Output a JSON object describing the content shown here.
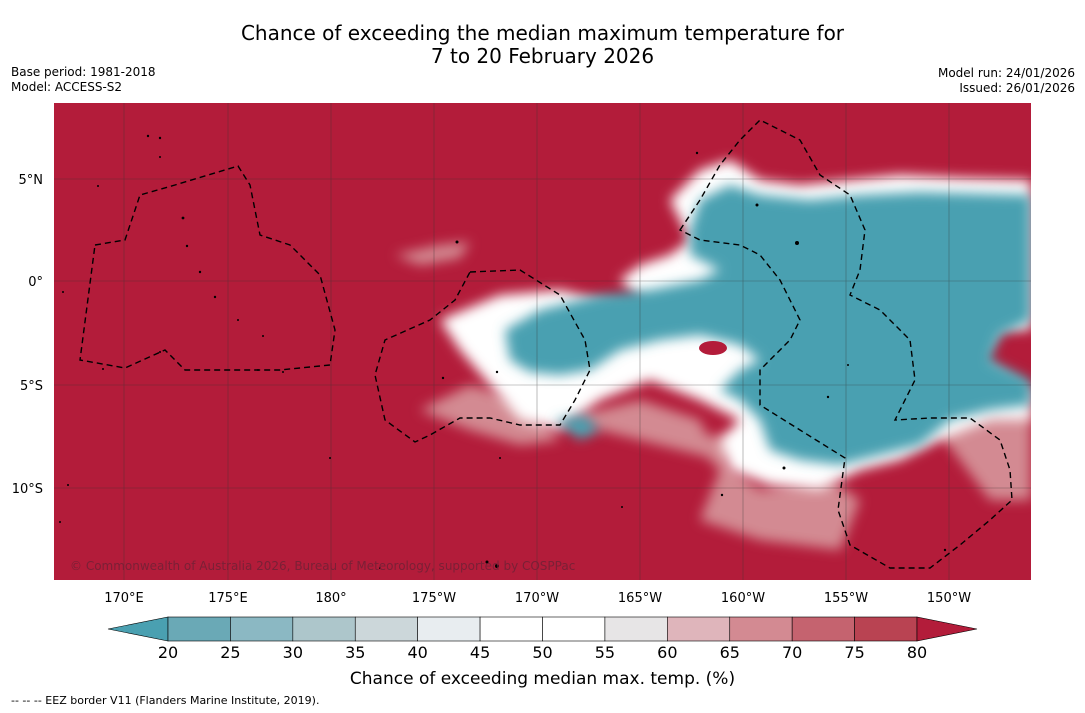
{
  "title": {
    "line1": "Chance of exceeding the median maximum temperature for",
    "line2": "7 to 20 February 2026"
  },
  "meta_left": {
    "base_period": "Base period: 1981-2018",
    "model": "Model: ACCESS-S2"
  },
  "meta_right": {
    "model_run": "Model run: 24/01/2026",
    "issued": "Issued: 26/01/2026"
  },
  "map": {
    "lat_labels": [
      "5°N",
      "0°",
      "5°S",
      "10°S"
    ],
    "lon_labels": [
      "170°E",
      "175°E",
      "180°",
      "175°W",
      "170°W",
      "165°W",
      "160°W",
      "155°W",
      "150°W"
    ],
    "copyright": "© Commonwealth of Australia 2026, Bureau of Meteorology, supported by COSPPac",
    "colors": {
      "high": "#b31c3a",
      "low": "#4aa0b1",
      "neutral": "#ffffff"
    }
  },
  "colorbar": {
    "ticks": [
      "20",
      "25",
      "30",
      "35",
      "40",
      "45",
      "50",
      "55",
      "60",
      "65",
      "70",
      "75",
      "80"
    ],
    "colors": [
      "#6aa9b6",
      "#8bb8c3",
      "#adc6cb",
      "#ccd7da",
      "#e8edf0",
      "#ffffff",
      "#ffffff",
      "#e7e5e6",
      "#dfb5bb",
      "#d38a92",
      "#c5636f",
      "#b94352"
    ],
    "under_color": "#4aa0b1",
    "over_color": "#b31c3a",
    "label": "Chance of exceeding median max. temp. (%)"
  },
  "footer": {
    "legend": "--  --  -- EEZ border V11 (Flanders Marine Institute, 2019)."
  }
}
